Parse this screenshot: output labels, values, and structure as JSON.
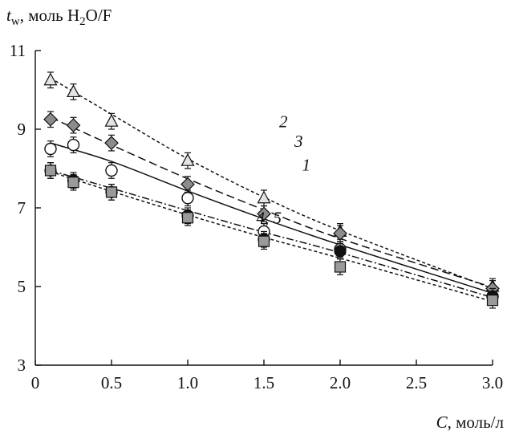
{
  "chart_data": {
    "type": "scatter",
    "y_label_main": "t",
    "y_label_sub": "w",
    "y_label_rest": ", моль H",
    "y_label_sub2": "2",
    "y_label_tail": "O/F",
    "x_label_main": "C",
    "x_label_rest": ", моль/л",
    "xlim": [
      0,
      3.0
    ],
    "ylim": [
      3,
      11
    ],
    "x_ticks": [
      0,
      0.5,
      1.0,
      1.5,
      2.0,
      2.5,
      3.0
    ],
    "x_tick_labels": [
      "0",
      "0.5",
      "1.0",
      "1.5",
      "2.0",
      "2.5",
      "3.0"
    ],
    "y_ticks": [
      3,
      5,
      7,
      9,
      11
    ],
    "y_tick_labels": [
      "3",
      "5",
      "7",
      "9",
      "11"
    ],
    "series": [
      {
        "name": "1",
        "marker": "circle-open",
        "line": "solid",
        "x": [
          0.1,
          0.25,
          0.5,
          1.0,
          1.5,
          2.0,
          3.0
        ],
        "y": [
          8.5,
          8.6,
          7.95,
          7.25,
          6.4,
          5.95,
          4.75
        ],
        "fit": [
          [
            0.1,
            8.65
          ],
          [
            0.5,
            8.18
          ],
          [
            1.0,
            7.43
          ],
          [
            1.5,
            6.72
          ],
          [
            2.0,
            6.06
          ],
          [
            3.0,
            4.83
          ]
        ]
      },
      {
        "name": "2",
        "marker": "triangle-open",
        "line": "dash-short",
        "x": [
          0.1,
          0.25,
          0.5,
          1.0,
          1.5,
          2.0,
          3.0
        ],
        "y": [
          10.25,
          9.95,
          9.2,
          8.2,
          7.25,
          6.4,
          5.0
        ],
        "fit": [
          [
            0.1,
            10.3
          ],
          [
            0.5,
            9.38
          ],
          [
            1.0,
            8.25
          ],
          [
            1.5,
            7.27
          ],
          [
            2.0,
            6.42
          ],
          [
            3.0,
            4.95
          ]
        ]
      },
      {
        "name": "3",
        "marker": "diamond-gray",
        "line": "dash-long",
        "x": [
          0.1,
          0.25,
          0.5,
          1.0,
          1.5,
          2.0,
          3.0
        ],
        "y": [
          9.25,
          9.1,
          8.65,
          7.6,
          6.85,
          6.35,
          4.95
        ],
        "fit": [
          [
            0.1,
            9.3
          ],
          [
            0.5,
            8.6
          ],
          [
            1.0,
            7.74
          ],
          [
            1.5,
            6.95
          ],
          [
            2.0,
            6.22
          ],
          [
            3.0,
            4.98
          ]
        ]
      },
      {
        "name": "4",
        "marker": "circle-filled",
        "line": "dash-dot",
        "x": [
          0.1,
          0.25,
          0.5,
          1.0,
          1.5,
          2.0,
          3.0
        ],
        "y": [
          7.95,
          7.7,
          7.4,
          6.8,
          6.2,
          5.9,
          4.75
        ],
        "fit": [
          [
            0.1,
            7.95
          ],
          [
            0.5,
            7.5
          ],
          [
            1.0,
            6.93
          ],
          [
            1.5,
            6.38
          ],
          [
            2.0,
            5.86
          ],
          [
            3.0,
            4.72
          ]
        ]
      },
      {
        "name": "5",
        "marker": "square-gray",
        "line": "dash-short",
        "x": [
          0.1,
          0.25,
          0.5,
          1.0,
          1.5,
          2.0,
          3.0
        ],
        "y": [
          7.95,
          7.65,
          7.4,
          6.75,
          6.15,
          5.5,
          4.65
        ],
        "fit": [
          [
            0.1,
            7.92
          ],
          [
            0.5,
            7.42
          ],
          [
            1.0,
            6.82
          ],
          [
            1.5,
            6.25
          ],
          [
            2.0,
            5.72
          ],
          [
            3.0,
            4.62
          ]
        ]
      }
    ],
    "annotations": [
      {
        "text": "2",
        "x": 1.6,
        "y": 9.05
      },
      {
        "text": "3",
        "x": 1.7,
        "y": 8.55
      },
      {
        "text": "1",
        "x": 1.75,
        "y": 7.95
      },
      {
        "text": "4, 5",
        "x": 1.45,
        "y": 6.6
      }
    ],
    "error_bar": 0.2
  }
}
